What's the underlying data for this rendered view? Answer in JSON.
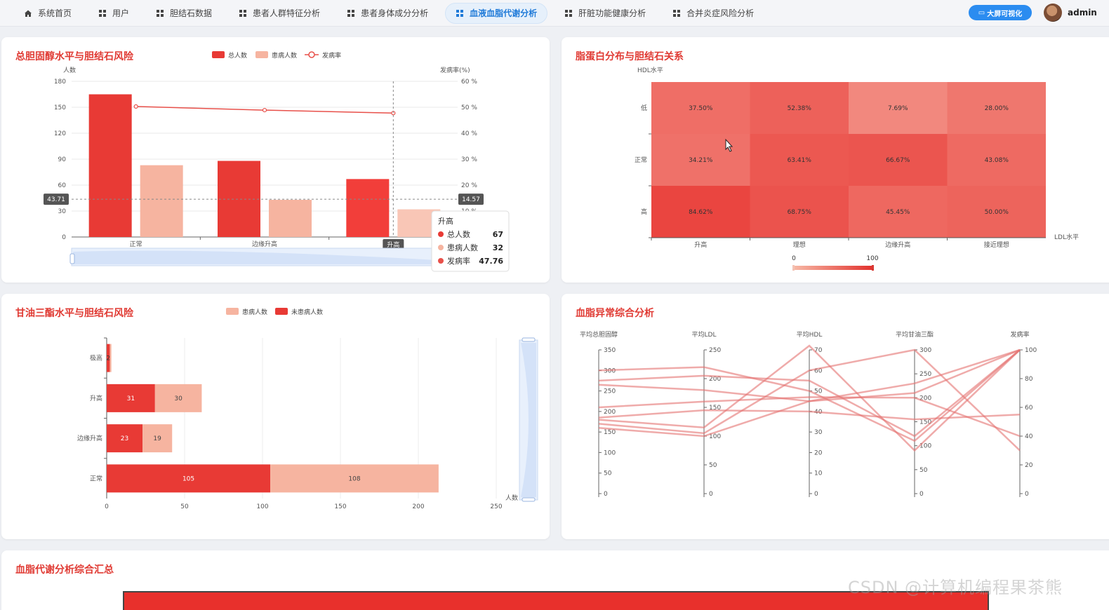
{
  "nav": {
    "items": [
      {
        "label": "系统首页",
        "icon": "home-icon"
      },
      {
        "label": "用户",
        "icon": "grid-icon"
      },
      {
        "label": "胆结石数据",
        "icon": "grid-icon"
      },
      {
        "label": "患者人群特征分析",
        "icon": "grid-icon"
      },
      {
        "label": "患者身体成分分析",
        "icon": "grid-icon"
      },
      {
        "label": "血液血脂代谢分析",
        "icon": "grid-icon",
        "active": true
      },
      {
        "label": "肝脏功能健康分析",
        "icon": "grid-icon"
      },
      {
        "label": "合并炎症风险分析",
        "icon": "grid-icon"
      }
    ],
    "screen_button": "大屏可视化",
    "user": "admin"
  },
  "colors": {
    "accent": "#e03a33",
    "bar_red": "#e83a35",
    "bar_pink": "#f6b4a0",
    "nav_active": "#1f7ad8"
  },
  "charts": {
    "cholesterol": {
      "title": "总胆固醇水平与胆结石风险",
      "legend": [
        "总人数",
        "患病人数",
        "发病率"
      ],
      "ylabel_left": "人数",
      "ylabel_right": "发病率(%)",
      "categories": [
        "正常",
        "边缘升高",
        "升高"
      ],
      "left_ticks": [
        "0",
        "30",
        "60",
        "90",
        "120",
        "150",
        "180"
      ],
      "right_ticks": [
        "0 %",
        "10 %",
        "20 %",
        "30 %",
        "40 %",
        "50 %",
        "60 %"
      ],
      "cursor_left_label": "43.71",
      "cursor_right_label": "14.57",
      "cursor_x_label": "升高",
      "tooltip": {
        "title": "升高",
        "rows": [
          {
            "name": "总人数",
            "value": "67"
          },
          {
            "name": "患病人数",
            "value": "32"
          },
          {
            "name": "发病率",
            "value": "47.76"
          }
        ]
      }
    },
    "lipoprotein": {
      "title": "脂蛋白分布与胆结石关系",
      "ylabel": "HDL水平",
      "xlabel": "LDL水平",
      "rows": [
        "低",
        "正常",
        "高"
      ],
      "cols": [
        "升高",
        "理想",
        "边缘升高",
        "接近理想"
      ],
      "cells": [
        [
          "37.50%",
          "52.38%",
          "7.69%",
          "28.00%"
        ],
        [
          "34.21%",
          "63.41%",
          "66.67%",
          "43.08%"
        ],
        [
          "84.62%",
          "68.75%",
          "45.45%",
          "50.00%"
        ]
      ],
      "scale_min": "0",
      "scale_max": "100"
    },
    "triglyceride": {
      "title": "甘油三酯水平与胆结石风险",
      "legend": [
        "患病人数",
        "未患病人数"
      ],
      "categories": [
        "极高",
        "升高",
        "边缘升高",
        "正常"
      ],
      "x_ticks": [
        "0",
        "50",
        "100",
        "150",
        "200",
        "250"
      ],
      "xlabel": "人数",
      "bar_labels_red": [
        "2",
        "31",
        "23",
        "105"
      ],
      "bar_labels_pink": [
        "",
        "30",
        "19",
        "108"
      ]
    },
    "parallel": {
      "title": "血脂异常综合分析",
      "axes": [
        {
          "name": "平均总胆固醇",
          "ticks": [
            "0",
            "50",
            "100",
            "150",
            "200",
            "250",
            "300",
            "350"
          ]
        },
        {
          "name": "平均LDL",
          "ticks": [
            "0",
            "50",
            "100",
            "150",
            "200",
            "250"
          ]
        },
        {
          "name": "平均HDL",
          "ticks": [
            "0",
            "10",
            "20",
            "30",
            "40",
            "50",
            "60",
            "70"
          ]
        },
        {
          "name": "平均甘油三酯",
          "ticks": [
            "0",
            "50",
            "100",
            "150",
            "200",
            "250",
            "300"
          ]
        },
        {
          "name": "发病率",
          "ticks": [
            "0",
            "20",
            "40",
            "60",
            "80",
            "100"
          ]
        }
      ]
    },
    "summary": {
      "title": "血脂代谢分析综合汇总"
    }
  },
  "chart_data": [
    {
      "type": "bar",
      "title": "总胆固醇水平与胆结石风险",
      "ylabel": "人数",
      "categories": [
        "正常",
        "边缘升高",
        "升高"
      ],
      "ylim": [
        0,
        180
      ],
      "y2lim": [
        0,
        60
      ],
      "series": [
        {
          "name": "总人数",
          "type": "bar",
          "values": [
            165,
            88,
            67
          ]
        },
        {
          "name": "患病人数",
          "type": "bar",
          "values": [
            83,
            43,
            32
          ]
        },
        {
          "name": "发病率",
          "type": "line",
          "axis": "right",
          "values": [
            50.3,
            48.9,
            47.76
          ]
        }
      ]
    },
    {
      "type": "heatmap",
      "title": "脂蛋白分布与胆结石关系",
      "xlabel": "LDL水平",
      "ylabel": "HDL水平",
      "x": [
        "升高",
        "理想",
        "边缘升高",
        "接近理想"
      ],
      "y": [
        "低",
        "正常",
        "高"
      ],
      "values": [
        [
          37.5,
          52.38,
          7.69,
          28.0
        ],
        [
          34.21,
          63.41,
          66.67,
          43.08
        ],
        [
          84.62,
          68.75,
          45.45,
          50.0
        ]
      ],
      "range": [
        0,
        100
      ]
    },
    {
      "type": "bar",
      "orientation": "horizontal",
      "stacked": true,
      "title": "甘油三酯水平与胆结石风险",
      "xlabel": "人数",
      "categories": [
        "极高",
        "升高",
        "边缘升高",
        "正常"
      ],
      "xlim": [
        0,
        250
      ],
      "series": [
        {
          "name": "未患病人数",
          "values": [
            2,
            31,
            23,
            105
          ]
        },
        {
          "name": "患病人数",
          "values": [
            1,
            30,
            19,
            108
          ]
        }
      ]
    },
    {
      "type": "line",
      "subtype": "parallel",
      "title": "血脂异常综合分析",
      "dimensions": [
        "平均总胆固醇",
        "平均LDL",
        "平均HDL",
        "平均甘油三酯",
        "发病率"
      ],
      "ranges": [
        [
          0,
          350
        ],
        [
          0,
          250
        ],
        [
          0,
          70
        ],
        [
          0,
          300
        ],
        [
          0,
          100
        ]
      ],
      "lines": [
        [
          300,
          220,
          50,
          110,
          100
        ],
        [
          275,
          205,
          55,
          120,
          100
        ],
        [
          265,
          180,
          45,
          210,
          100
        ],
        [
          210,
          160,
          47,
          200,
          40
        ],
        [
          185,
          145,
          40,
          155,
          55
        ],
        [
          180,
          115,
          72,
          90,
          100
        ],
        [
          170,
          105,
          60,
          300,
          30
        ],
        [
          160,
          100,
          45,
          230,
          100
        ]
      ]
    }
  ]
}
